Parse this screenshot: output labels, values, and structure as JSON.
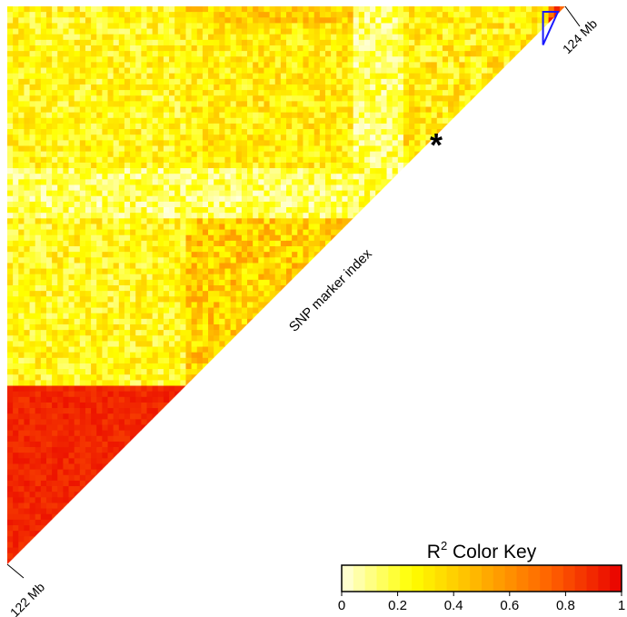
{
  "chart_data": {
    "type": "heatmap",
    "title": "",
    "diagonal_label": "SNP marker index",
    "start_label": "122 Mb",
    "end_label": "124 Mb",
    "marker_symbol": "*",
    "color_key": {
      "title_base": "R",
      "title_sup": "2",
      "title_rest": " Color Key",
      "range": [
        0,
        1
      ],
      "ticks": [
        "0",
        "0.2",
        "0.4",
        "0.6",
        "0.8",
        "1"
      ],
      "colors": [
        "#ffffe0",
        "#ffff00",
        "#ffb000",
        "#ff6000",
        "#e80000"
      ]
    },
    "value_range": [
      0,
      1
    ],
    "blocks": [
      {
        "from": 0.0,
        "to": 0.32,
        "r2_mean": 0.25
      },
      {
        "from": 0.32,
        "to": 0.62,
        "r2_mean": 0.4
      },
      {
        "from": 0.62,
        "to": 0.71,
        "r2_mean": 0.15
      },
      {
        "from": 0.71,
        "to": 0.97,
        "r2_mean": 0.3
      },
      {
        "from": 0.97,
        "to": 1.0,
        "r2_mean": 0.8
      }
    ],
    "high_ld_bands": [
      {
        "from": 0.0,
        "to": 0.32,
        "r2": 0.95
      },
      {
        "from": 0.62,
        "to": 0.71,
        "r2": 0.85
      },
      {
        "from": 0.97,
        "to": 1.0,
        "r2": 0.9
      }
    ],
    "highlighted_region": {
      "from": 0.97,
      "to": 1.0,
      "outline_color": "#1a1aff"
    }
  }
}
